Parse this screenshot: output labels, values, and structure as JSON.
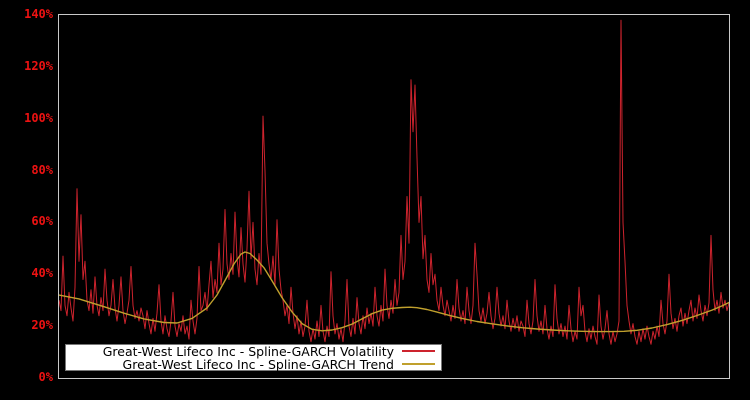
{
  "figure": {
    "background": "#000000",
    "plot_border_color": "#c9c9c9",
    "plot_background": "#000000"
  },
  "y_axis": {
    "labels": [
      "0%",
      "20%",
      "40%",
      "60%",
      "80%",
      "100%",
      "120%",
      "140%"
    ],
    "values": [
      0,
      20,
      40,
      60,
      80,
      100,
      120,
      140
    ],
    "color": "#ee1212",
    "min": 0,
    "max": 140,
    "step": 20
  },
  "x_axis": {
    "labels_visible": false
  },
  "legend": {
    "background": "#ffffff",
    "entries": [
      {
        "label": "Great-West Lifeco Inc - Spline-GARCH Volatility",
        "color": "#cd232d"
      },
      {
        "label": "Great-West Lifeco Inc - Spline-GARCH Trend",
        "color": "#c0a02d"
      }
    ]
  },
  "chart_data": {
    "type": "line",
    "title": "",
    "xlabel": "",
    "ylabel": "",
    "ylim": [
      0,
      140
    ],
    "y_tick_labels": [
      "0%",
      "20%",
      "40%",
      "60%",
      "80%",
      "100%",
      "120%",
      "140%"
    ],
    "grid": false,
    "legend_position": "bottom-left",
    "x_units": "trading-day index (no axis labels shown)",
    "x_range": [
      0,
      670
    ],
    "series": [
      {
        "name": "Great-West Lifeco Inc - Spline-GARCH Volatility",
        "color": "#cd232d",
        "unit": "%",
        "x_start": 0,
        "x_step": 2,
        "values": [
          30,
          26,
          47,
          28,
          24,
          33,
          27,
          22,
          35,
          73,
          45,
          63,
          38,
          45,
          30,
          26,
          34,
          25,
          39,
          28,
          24,
          31,
          26,
          42,
          30,
          24,
          28,
          38,
          27,
          22,
          28,
          39,
          26,
          21,
          25,
          30,
          43,
          28,
          23,
          26,
          22,
          27,
          24,
          19,
          26,
          21,
          17,
          23,
          18,
          25,
          36,
          22,
          17,
          24,
          19,
          16,
          22,
          33,
          20,
          16,
          21,
          18,
          24,
          17,
          20,
          15,
          30,
          22,
          17,
          23,
          43,
          26,
          28,
          33,
          26,
          36,
          45,
          31,
          38,
          33,
          52,
          36,
          42,
          65,
          44,
          38,
          48,
          40,
          64,
          46,
          39,
          58,
          44,
          37,
          50,
          72,
          46,
          60,
          42,
          36,
          48,
          40,
          101,
          80,
          52,
          44,
          38,
          47,
          36,
          61,
          42,
          34,
          30,
          24,
          28,
          21,
          35,
          25,
          19,
          24,
          17,
          22,
          16,
          20,
          30,
          18,
          14,
          19,
          15,
          22,
          16,
          28,
          18,
          14,
          20,
          16,
          41,
          24,
          17,
          21,
          15,
          19,
          14,
          22,
          38,
          20,
          16,
          23,
          17,
          31,
          21,
          17,
          24,
          19,
          27,
          21,
          25,
          20,
          35,
          24,
          20,
          28,
          22,
          42,
          28,
          23,
          30,
          25,
          38,
          28,
          33,
          55,
          38,
          45,
          70,
          52,
          115,
          95,
          113,
          85,
          60,
          70,
          46,
          55,
          38,
          33,
          48,
          36,
          40,
          30,
          26,
          35,
          28,
          24,
          30,
          26,
          22,
          28,
          23,
          38,
          27,
          22,
          26,
          21,
          35,
          26,
          21,
          28,
          52,
          40,
          26,
          22,
          27,
          21,
          25,
          33,
          24,
          19,
          23,
          35,
          25,
          20,
          24,
          19,
          30,
          22,
          18,
          23,
          19,
          24,
          18,
          22,
          20,
          16,
          30,
          21,
          17,
          22,
          38,
          24,
          18,
          22,
          17,
          28,
          19,
          15,
          20,
          16,
          36,
          23,
          17,
          21,
          16,
          20,
          15,
          28,
          19,
          14,
          18,
          15,
          35,
          24,
          28,
          18,
          14,
          19,
          15,
          20,
          16,
          13,
          32,
          20,
          15,
          19,
          26,
          17,
          13,
          18,
          14,
          17,
          22,
          138,
          60,
          45,
          28,
          22,
          17,
          21,
          16,
          13,
          18,
          14,
          19,
          15,
          20,
          16,
          13,
          18,
          15,
          20,
          16,
          30,
          21,
          17,
          22,
          40,
          25,
          19,
          23,
          18,
          24,
          27,
          20,
          25,
          21,
          26,
          30,
          22,
          27,
          23,
          32,
          26,
          22,
          28,
          24,
          29,
          55,
          34,
          26,
          30,
          25,
          33,
          27,
          30,
          26,
          29
        ]
      },
      {
        "name": "Great-West Lifeco Inc - Spline-GARCH Trend",
        "color": "#c0a02d",
        "unit": "%",
        "points": [
          [
            0,
            32
          ],
          [
            20,
            30.5
          ],
          [
            45,
            27.5
          ],
          [
            65,
            25
          ],
          [
            85,
            22.8
          ],
          [
            105,
            21.4
          ],
          [
            118,
            21.2
          ],
          [
            133,
            23
          ],
          [
            148,
            27
          ],
          [
            158,
            32
          ],
          [
            168,
            39
          ],
          [
            175,
            44
          ],
          [
            182,
            47.8
          ],
          [
            186,
            48.6
          ],
          [
            191,
            48
          ],
          [
            198,
            45.5
          ],
          [
            205,
            42.5
          ],
          [
            213,
            37.5
          ],
          [
            223,
            31
          ],
          [
            233,
            25.5
          ],
          [
            243,
            21
          ],
          [
            253,
            18.8
          ],
          [
            263,
            18.2
          ],
          [
            273,
            18.5
          ],
          [
            283,
            19.4
          ],
          [
            293,
            20.8
          ],
          [
            303,
            22.8
          ],
          [
            313,
            24.8
          ],
          [
            323,
            26.2
          ],
          [
            333,
            26.9
          ],
          [
            343,
            27.2
          ],
          [
            351,
            27.3
          ],
          [
            358,
            27.1
          ],
          [
            368,
            26.4
          ],
          [
            378,
            25.4
          ],
          [
            390,
            24.2
          ],
          [
            403,
            23
          ],
          [
            418,
            21.8
          ],
          [
            433,
            20.9
          ],
          [
            448,
            20.1
          ],
          [
            463,
            19.4
          ],
          [
            478,
            18.9
          ],
          [
            493,
            18.5
          ],
          [
            508,
            18.2
          ],
          [
            523,
            18
          ],
          [
            538,
            17.9
          ],
          [
            553,
            17.9
          ],
          [
            565,
            18
          ],
          [
            578,
            18.4
          ],
          [
            593,
            19.3
          ],
          [
            608,
            20.6
          ],
          [
            623,
            22.2
          ],
          [
            638,
            24.1
          ],
          [
            653,
            26.2
          ],
          [
            663,
            27.8
          ],
          [
            671,
            29.3
          ]
        ]
      }
    ]
  }
}
